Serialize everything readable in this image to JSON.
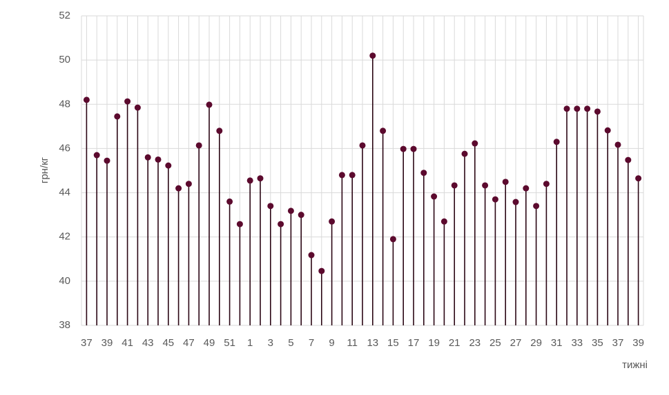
{
  "chart_data": {
    "type": "lollipop",
    "y_label": "грн/кг",
    "x_label": "тижні",
    "categories": [
      "37",
      null,
      "39",
      null,
      "41",
      null,
      "43",
      null,
      "45",
      null,
      "47",
      null,
      "49",
      null,
      "51",
      null,
      "1",
      null,
      "3",
      null,
      "5",
      null,
      "7",
      null,
      "9",
      null,
      "11",
      null,
      "13",
      null,
      "15",
      null,
      "17",
      null,
      "19",
      null,
      "21",
      null,
      "23",
      null,
      "25",
      null,
      "27",
      null,
      "29",
      null,
      "31",
      null,
      "33",
      null,
      "35",
      null,
      "37",
      null,
      "39"
    ],
    "values": [
      48.2,
      45.7,
      45.45,
      47.45,
      48.13,
      47.85,
      45.6,
      45.5,
      45.23,
      44.2,
      44.4,
      46.14,
      47.98,
      46.8,
      43.6,
      42.58,
      44.55,
      44.65,
      43.4,
      42.58,
      43.18,
      43.0,
      41.18,
      40.46,
      42.7,
      44.8,
      44.8,
      46.14,
      50.2,
      46.8,
      41.9,
      45.98,
      45.98,
      44.9,
      43.83,
      42.7,
      44.33,
      45.76,
      46.23,
      44.33,
      43.7,
      44.49,
      43.58,
      44.2,
      43.4,
      44.4,
      46.3,
      47.8,
      47.8,
      47.8,
      47.67,
      46.82,
      46.17,
      45.48,
      44.65
    ],
    "color": "#5c0a2e",
    "ylim": [
      38,
      52
    ],
    "yticks": [
      38,
      40,
      42,
      44,
      46,
      48,
      50,
      52
    ],
    "grid": true
  }
}
